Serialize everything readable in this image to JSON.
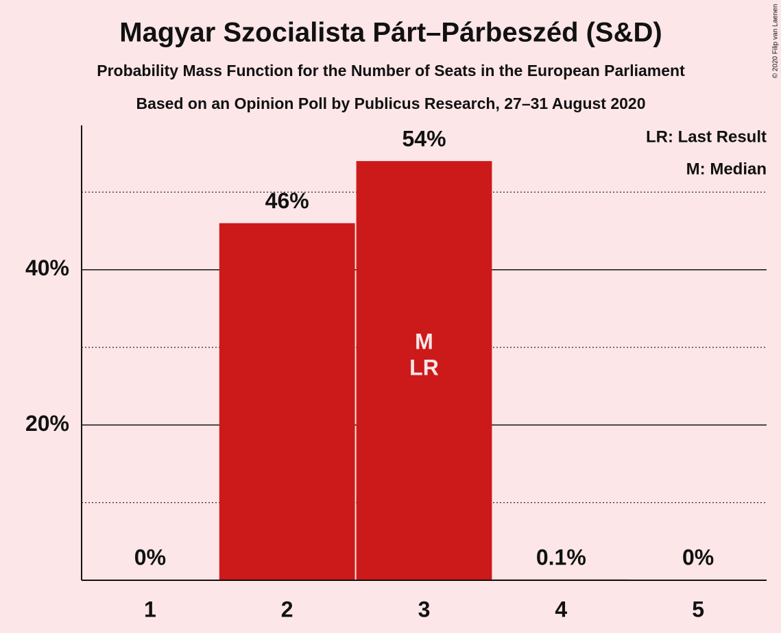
{
  "chart_data": {
    "type": "bar",
    "title": "Magyar Szocialista Párt–Párbeszéd (S&D)",
    "subtitle": "Probability Mass Function for the Number of Seats in the European Parliament",
    "subtitle2": "Based on an Opinion Poll by Publicus Research, 27–31 August 2020",
    "copyright": "© 2020 Filip van Laenen",
    "categories": [
      "1",
      "2",
      "3",
      "4",
      "5"
    ],
    "values": [
      0,
      46,
      54,
      0.1,
      0
    ],
    "value_labels": [
      "0%",
      "46%",
      "54%",
      "0.1%",
      "0%"
    ],
    "color": "#cc1a1a",
    "ylim": [
      0,
      58.6
    ],
    "yticks": [
      {
        "value": 20,
        "label": "20%"
      },
      {
        "value": 40,
        "label": "40%"
      }
    ],
    "minor_gridlines": [
      10,
      30,
      50
    ],
    "grid": true,
    "markers": {
      "category": "3",
      "labels": [
        "M",
        "LR"
      ]
    },
    "legend": [
      "LR: Last Result",
      "M: Median"
    ]
  }
}
